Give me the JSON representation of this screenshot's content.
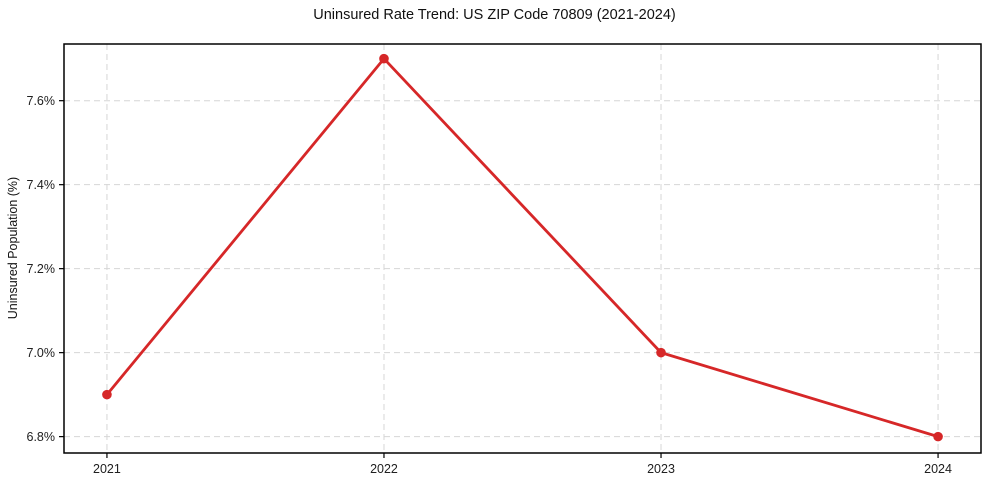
{
  "figure": {
    "background": "#ffffff"
  },
  "chart_data": {
    "type": "line",
    "title": "Uninsured Rate Trend: US ZIP Code 70809 (2021-2024)",
    "xlabel": "",
    "ylabel": "Uninsured Population (%)",
    "x": [
      2021,
      2022,
      2023,
      2024
    ],
    "values": [
      6.9,
      7.7,
      7.0,
      6.8
    ],
    "xticks": [
      2021,
      2022,
      2023,
      2024
    ],
    "xtick_labels": [
      "2021",
      "2022",
      "2023",
      "2024"
    ],
    "yticks": [
      6.8,
      7.0,
      7.2,
      7.4,
      7.6
    ],
    "ytick_labels": [
      "6.8%",
      "7.0%",
      "7.2%",
      "7.4%",
      "7.6%"
    ],
    "xlim": [
      2020.845,
      2024.155
    ],
    "ylim": [
      6.761,
      7.735
    ],
    "grid": true,
    "grid_style": "dashed",
    "legend": "none",
    "line_color": "#d62728",
    "marker": "circle",
    "grid_color": "#d6d6d6",
    "spine_color": "#000000",
    "tick_color": "#000000",
    "tick_label_color": "#202020",
    "line_width": 2.8,
    "marker_size": 4.8
  }
}
